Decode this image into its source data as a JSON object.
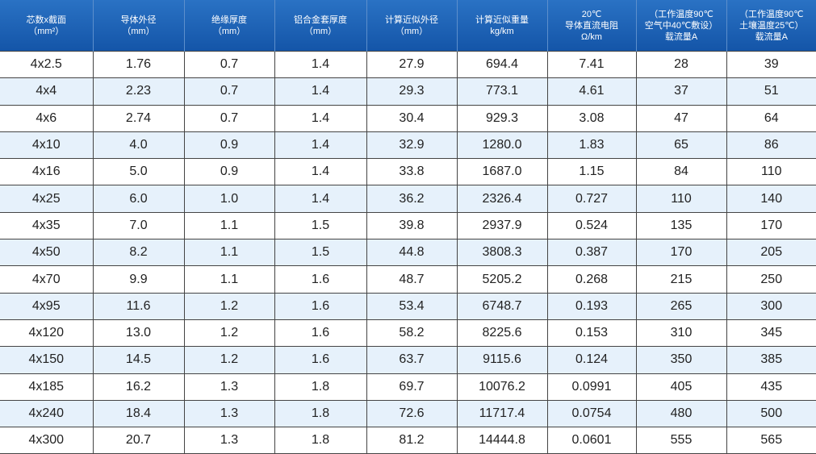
{
  "table": {
    "header": [
      [
        "芯数x截面",
        "（mm²）"
      ],
      [
        "导体外径",
        "（mm）"
      ],
      [
        "绝缘厚度",
        "（mm）"
      ],
      [
        "铝合金套厚度",
        "（mm）"
      ],
      [
        "计算近似外径",
        "（mm）"
      ],
      [
        "计算近似重量",
        "kg/km"
      ],
      [
        "20℃",
        "导体直流电阻",
        "Ω/km"
      ],
      [
        "（工作温度90℃",
        "空气中40℃敷设）",
        "载流量A"
      ],
      [
        "（工作温度90℃",
        "土壤温度25℃）",
        "载流量A"
      ]
    ],
    "rows": [
      [
        "4x2.5",
        "1.76",
        "0.7",
        "1.4",
        "27.9",
        "694.4",
        "7.41",
        "28",
        "39"
      ],
      [
        "4x4",
        "2.23",
        "0.7",
        "1.4",
        "29.3",
        "773.1",
        "4.61",
        "37",
        "51"
      ],
      [
        "4x6",
        "2.74",
        "0.7",
        "1.4",
        "30.4",
        "929.3",
        "3.08",
        "47",
        "64"
      ],
      [
        "4x10",
        "4.0",
        "0.9",
        "1.4",
        "32.9",
        "1280.0",
        "1.83",
        "65",
        "86"
      ],
      [
        "4x16",
        "5.0",
        "0.9",
        "1.4",
        "33.8",
        "1687.0",
        "1.15",
        "84",
        "110"
      ],
      [
        "4x25",
        "6.0",
        "1.0",
        "1.4",
        "36.2",
        "2326.4",
        "0.727",
        "110",
        "140"
      ],
      [
        "4x35",
        "7.0",
        "1.1",
        "1.5",
        "39.8",
        "2937.9",
        "0.524",
        "135",
        "170"
      ],
      [
        "4x50",
        "8.2",
        "1.1",
        "1.5",
        "44.8",
        "3808.3",
        "0.387",
        "170",
        "205"
      ],
      [
        "4x70",
        "9.9",
        "1.1",
        "1.6",
        "48.7",
        "5205.2",
        "0.268",
        "215",
        "250"
      ],
      [
        "4x95",
        "11.6",
        "1.2",
        "1.6",
        "53.4",
        "6748.7",
        "0.193",
        "265",
        "300"
      ],
      [
        "4x120",
        "13.0",
        "1.2",
        "1.6",
        "58.2",
        "8225.6",
        "0.153",
        "310",
        "345"
      ],
      [
        "4x150",
        "14.5",
        "1.2",
        "1.6",
        "63.7",
        "9115.6",
        "0.124",
        "350",
        "385"
      ],
      [
        "4x185",
        "16.2",
        "1.3",
        "1.8",
        "69.7",
        "10076.2",
        "0.0991",
        "405",
        "435"
      ],
      [
        "4x240",
        "18.4",
        "1.3",
        "1.8",
        "72.6",
        "11717.4",
        "0.0754",
        "480",
        "500"
      ],
      [
        "4x300",
        "20.7",
        "1.3",
        "1.8",
        "81.2",
        "14444.8",
        "0.0601",
        "555",
        "565"
      ]
    ]
  }
}
